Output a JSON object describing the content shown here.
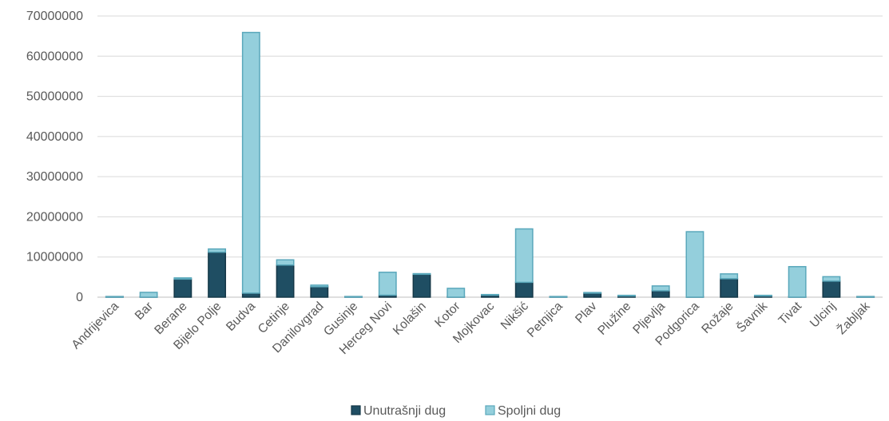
{
  "chart_data": {
    "type": "bar",
    "stacked": true,
    "title": "",
    "xlabel": "",
    "ylabel": "",
    "ylim": [
      0,
      70000000
    ],
    "yticks": [
      0,
      10000000,
      20000000,
      30000000,
      40000000,
      50000000,
      60000000,
      70000000
    ],
    "yticklabels": [
      "0",
      "10000000",
      "20000000",
      "30000000",
      "40000000",
      "50000000",
      "60000000",
      "70000000"
    ],
    "grid": true,
    "legend_position": "bottom",
    "categories": [
      "Andrijevica",
      "Bar",
      "Berane",
      "Bijelo Polje",
      "Budva",
      "Cetinje",
      "Danilovgrad",
      "Gusinje",
      "Herceg Novi",
      "Kolašin",
      "Kotor",
      "Mojkovac",
      "Nikšić",
      "Petnjica",
      "Plav",
      "Plužine",
      "Pljevlja",
      "Podgorica",
      "Rožaje",
      "Šavnik",
      "Tivat",
      "Ulcinj",
      "Žabljak"
    ],
    "series": [
      {
        "name": "Unutrašnji dug",
        "color": "#1f4e63",
        "values": [
          0,
          0,
          4500000,
          11200000,
          1000000,
          8000000,
          2600000,
          0,
          500000,
          5700000,
          0,
          500000,
          3700000,
          0,
          1000000,
          300000,
          1600000,
          0,
          4600000,
          300000,
          0,
          4000000,
          0
        ]
      },
      {
        "name": "Spoljni dug",
        "color": "#94cfdc",
        "values": [
          0,
          1200000,
          300000,
          800000,
          64900000,
          1300000,
          400000,
          0,
          5700000,
          0,
          2200000,
          0,
          13300000,
          0,
          0,
          0,
          1200000,
          16300000,
          1200000,
          0,
          7600000,
          1100000,
          0
        ]
      }
    ]
  }
}
